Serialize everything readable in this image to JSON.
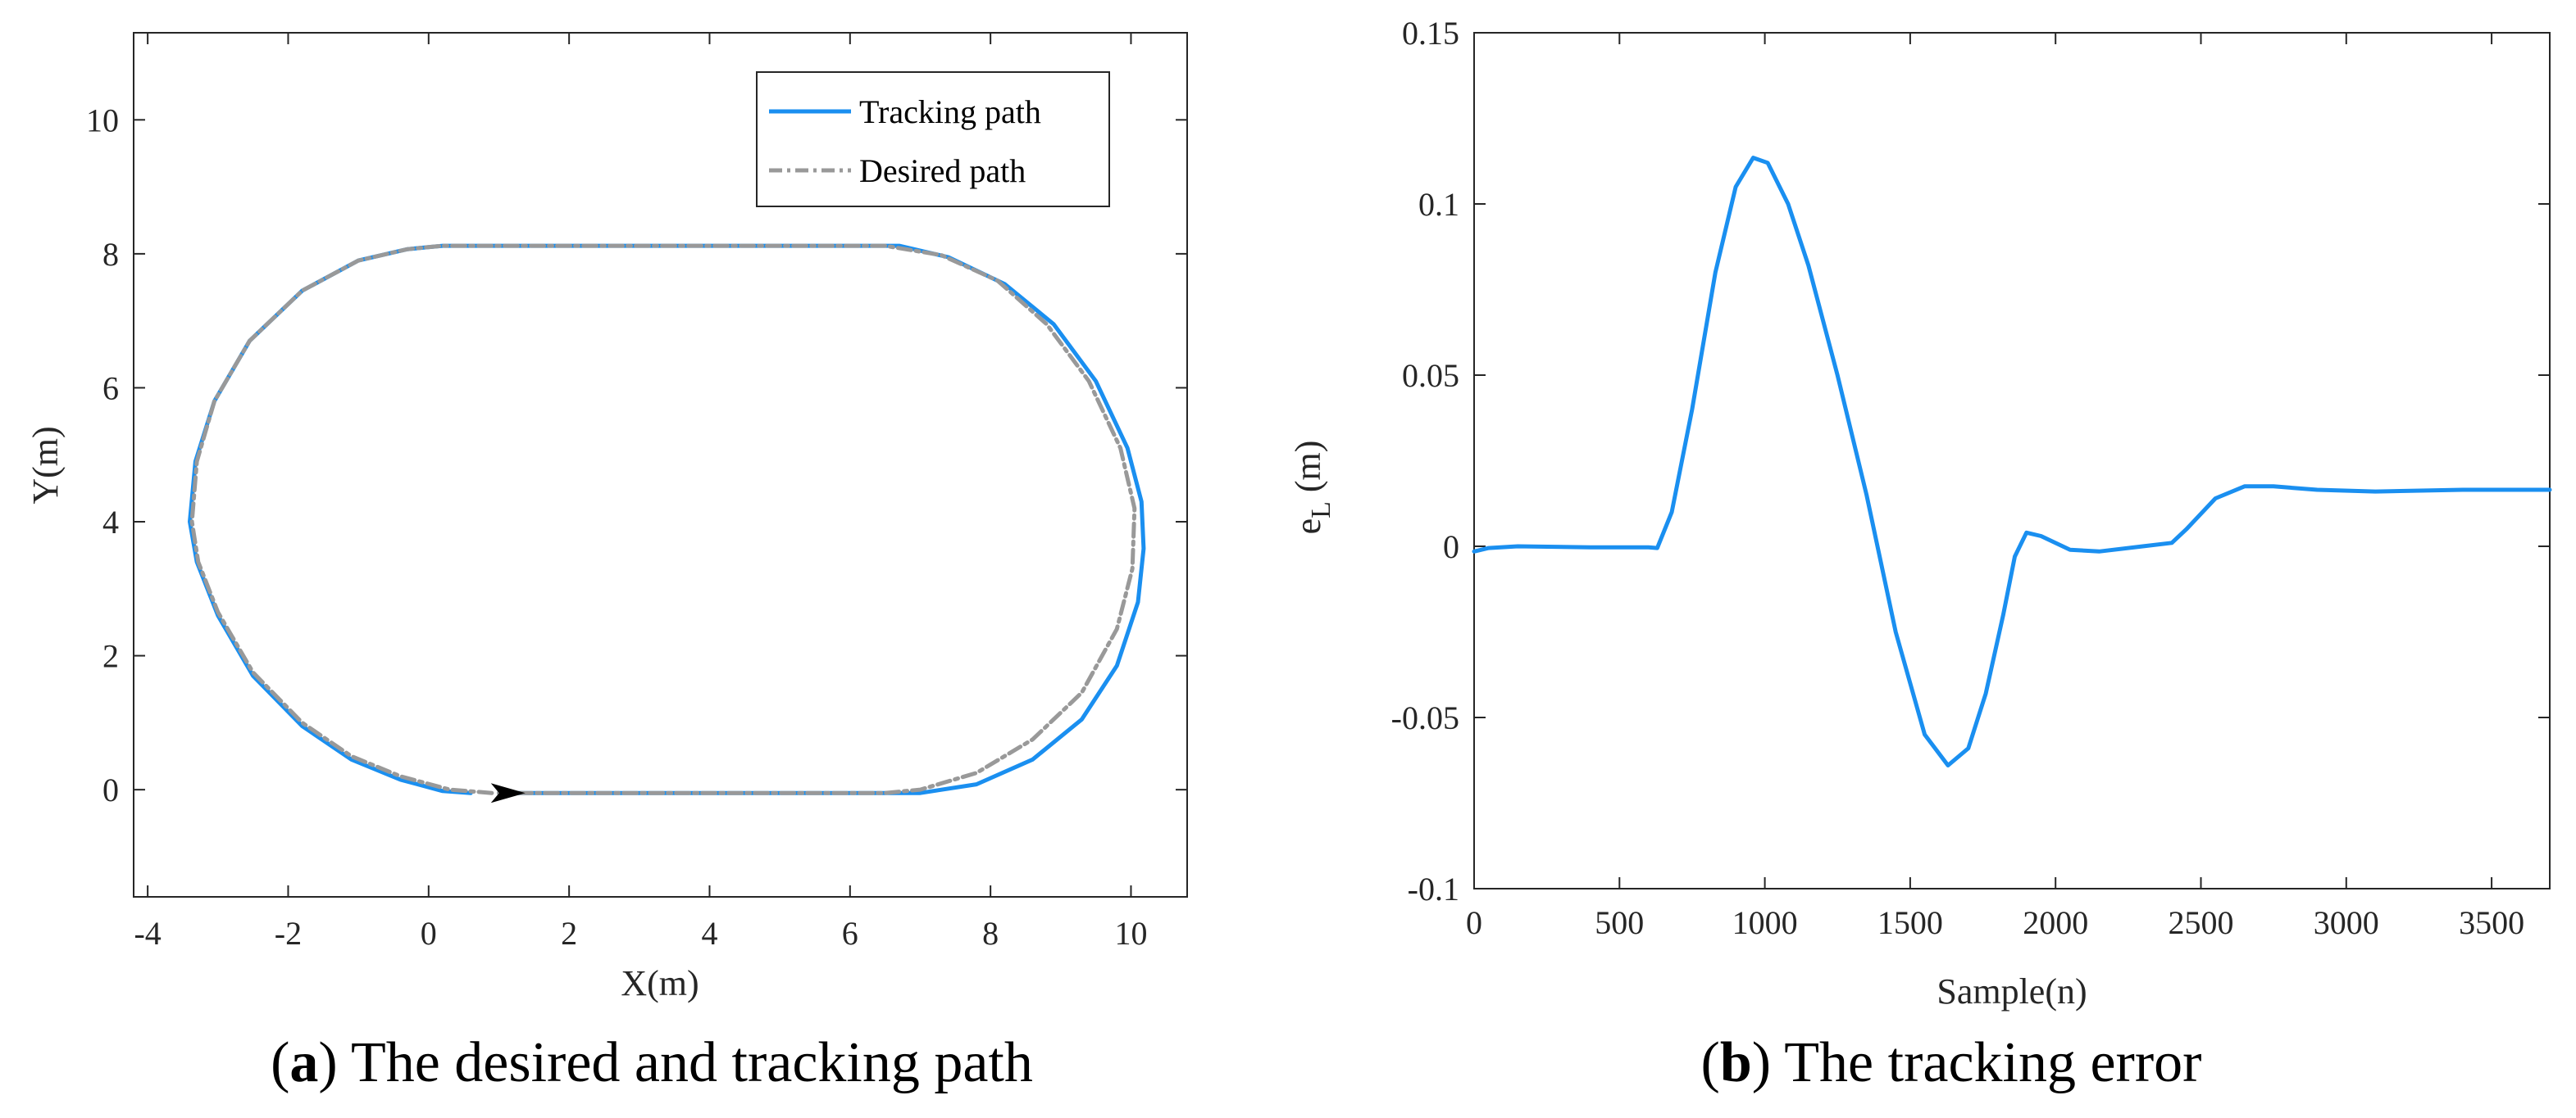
{
  "chart_data": [
    {
      "id": "a",
      "type": "line",
      "caption_letter": "a",
      "caption_text": " The desired and tracking path",
      "xlabel": "X(m)",
      "ylabel": "Y(m)",
      "xlim": [
        -4.2,
        10.8
      ],
      "ylim": [
        -1.6,
        11.3
      ],
      "xticks": [
        -4,
        -2,
        0,
        2,
        4,
        6,
        8,
        10
      ],
      "yticks": [
        0,
        2,
        4,
        6,
        8,
        10
      ],
      "legend": {
        "position": "top-right",
        "entries": [
          "Tracking path",
          "Desired path"
        ]
      },
      "series": [
        {
          "name": "Tracking path",
          "color": "#1a8ff0",
          "style": "solid",
          "points": [
            [
              0.6,
              -0.05
            ],
            [
              0.2,
              -0.02
            ],
            [
              -0.4,
              0.15
            ],
            [
              -1.1,
              0.45
            ],
            [
              -1.8,
              0.95
            ],
            [
              -2.5,
              1.7
            ],
            [
              -3.0,
              2.6
            ],
            [
              -3.3,
              3.4
            ],
            [
              -3.4,
              4.0
            ],
            [
              -3.32,
              4.9
            ],
            [
              -3.05,
              5.8
            ],
            [
              -2.55,
              6.7
            ],
            [
              -1.8,
              7.45
            ],
            [
              -1.0,
              7.9
            ],
            [
              -0.3,
              8.07
            ],
            [
              0.2,
              8.12
            ],
            [
              6.7,
              8.12
            ],
            [
              7.4,
              7.95
            ],
            [
              8.2,
              7.55
            ],
            [
              8.9,
              6.95
            ],
            [
              9.5,
              6.1
            ],
            [
              9.95,
              5.1
            ],
            [
              10.15,
              4.3
            ],
            [
              10.18,
              3.6
            ],
            [
              10.1,
              2.8
            ],
            [
              9.8,
              1.85
            ],
            [
              9.3,
              1.05
            ],
            [
              8.6,
              0.45
            ],
            [
              7.8,
              0.08
            ],
            [
              7.0,
              -0.05
            ],
            [
              1.0,
              -0.05
            ]
          ]
        },
        {
          "name": "Desired path",
          "color": "#999999",
          "style": "dashdot",
          "points": [
            [
              0.9,
              -0.05
            ],
            [
              0.3,
              0.0
            ],
            [
              -0.4,
              0.2
            ],
            [
              -1.1,
              0.5
            ],
            [
              -1.8,
              1.0
            ],
            [
              -2.5,
              1.75
            ],
            [
              -3.0,
              2.65
            ],
            [
              -3.28,
              3.4
            ],
            [
              -3.37,
              4.0
            ],
            [
              -3.3,
              4.9
            ],
            [
              -3.05,
              5.8
            ],
            [
              -2.55,
              6.7
            ],
            [
              -1.8,
              7.45
            ],
            [
              -1.0,
              7.9
            ],
            [
              -0.3,
              8.07
            ],
            [
              0.2,
              8.12
            ],
            [
              6.5,
              8.12
            ],
            [
              7.3,
              7.98
            ],
            [
              8.1,
              7.6
            ],
            [
              8.8,
              6.95
            ],
            [
              9.4,
              6.1
            ],
            [
              9.85,
              5.1
            ],
            [
              10.05,
              4.2
            ],
            [
              10.02,
              3.3
            ],
            [
              9.8,
              2.4
            ],
            [
              9.3,
              1.45
            ],
            [
              8.6,
              0.75
            ],
            [
              7.8,
              0.25
            ],
            [
              7.0,
              0.0
            ],
            [
              6.5,
              -0.05
            ],
            [
              1.0,
              -0.05
            ]
          ]
        }
      ],
      "marker": {
        "label": "direction-arrow",
        "x": 1.05,
        "y": -0.05
      }
    },
    {
      "id": "b",
      "type": "line",
      "caption_letter": "b",
      "caption_text": " The tracking error",
      "xlabel": "Sample(n)",
      "ylabel_main": "e",
      "ylabel_sub": "L",
      "ylabel_unit": " (m)",
      "xlim": [
        0,
        3700
      ],
      "ylim": [
        -0.1,
        0.15
      ],
      "xticks": [
        0,
        500,
        1000,
        1500,
        2000,
        2500,
        3000,
        3500
      ],
      "yticks": [
        -0.1,
        -0.05,
        0,
        0.05,
        0.1,
        0.15
      ],
      "ytick_labels": [
        "-0.1",
        "-0.05",
        "0",
        "0.05",
        "0.1",
        "0.15"
      ],
      "series": [
        {
          "name": "e_L",
          "color": "#1a8ff0",
          "points": [
            [
              0,
              -0.0015
            ],
            [
              50,
              -0.0005
            ],
            [
              150,
              0.0
            ],
            [
              400,
              -0.0003
            ],
            [
              600,
              -0.0003
            ],
            [
              630,
              -0.0005
            ],
            [
              680,
              0.01
            ],
            [
              750,
              0.04
            ],
            [
              830,
              0.08
            ],
            [
              900,
              0.105
            ],
            [
              960,
              0.1135
            ],
            [
              1010,
              0.112
            ],
            [
              1080,
              0.1
            ],
            [
              1150,
              0.082
            ],
            [
              1250,
              0.05
            ],
            [
              1350,
              0.015
            ],
            [
              1450,
              -0.025
            ],
            [
              1550,
              -0.055
            ],
            [
              1630,
              -0.064
            ],
            [
              1700,
              -0.059
            ],
            [
              1760,
              -0.043
            ],
            [
              1820,
              -0.02
            ],
            [
              1860,
              -0.003
            ],
            [
              1900,
              0.004
            ],
            [
              1950,
              0.003
            ],
            [
              2050,
              -0.001
            ],
            [
              2150,
              -0.0015
            ],
            [
              2300,
              0.0
            ],
            [
              2400,
              0.001
            ],
            [
              2450,
              0.005
            ],
            [
              2550,
              0.014
            ],
            [
              2650,
              0.0175
            ],
            [
              2750,
              0.0175
            ],
            [
              2900,
              0.0165
            ],
            [
              3100,
              0.016
            ],
            [
              3400,
              0.0165
            ],
            [
              3700,
              0.0165
            ]
          ]
        }
      ]
    }
  ]
}
